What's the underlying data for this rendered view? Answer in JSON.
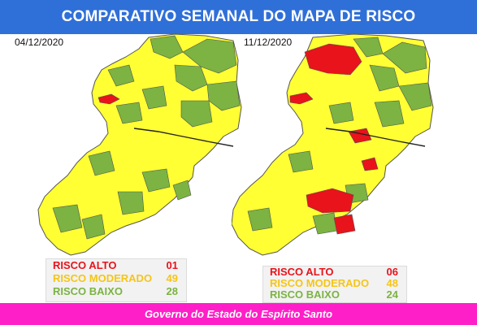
{
  "header": {
    "title": "COMPARATIVO SEMANAL DO MAPA DE RISCO"
  },
  "colors": {
    "high": "#e8131b",
    "moderate": "#ffff33",
    "low": "#7cb342",
    "header_bg": "#2f6fd8",
    "footer_bg": "#ff1fc8"
  },
  "maps": [
    {
      "date": "04/12/2020",
      "legend": [
        {
          "label": "RISCO ALTO",
          "value": "01",
          "color": "#e8131b"
        },
        {
          "label": "RISCO MODERADO",
          "value": "49",
          "color": "#f5c518"
        },
        {
          "label": "RISCO BAIXO",
          "value": "28",
          "color": "#7cb342"
        }
      ]
    },
    {
      "date": "11/12/2020",
      "legend": [
        {
          "label": "RISCO ALTO",
          "value": "06",
          "color": "#e8131b"
        },
        {
          "label": "RISCO MODERADO",
          "value": "48",
          "color": "#f5c518"
        },
        {
          "label": "RISCO BAIXO",
          "value": "24",
          "color": "#7cb342"
        }
      ]
    }
  ],
  "footer": {
    "text": "Governo do Estado do Espírito Santo"
  }
}
